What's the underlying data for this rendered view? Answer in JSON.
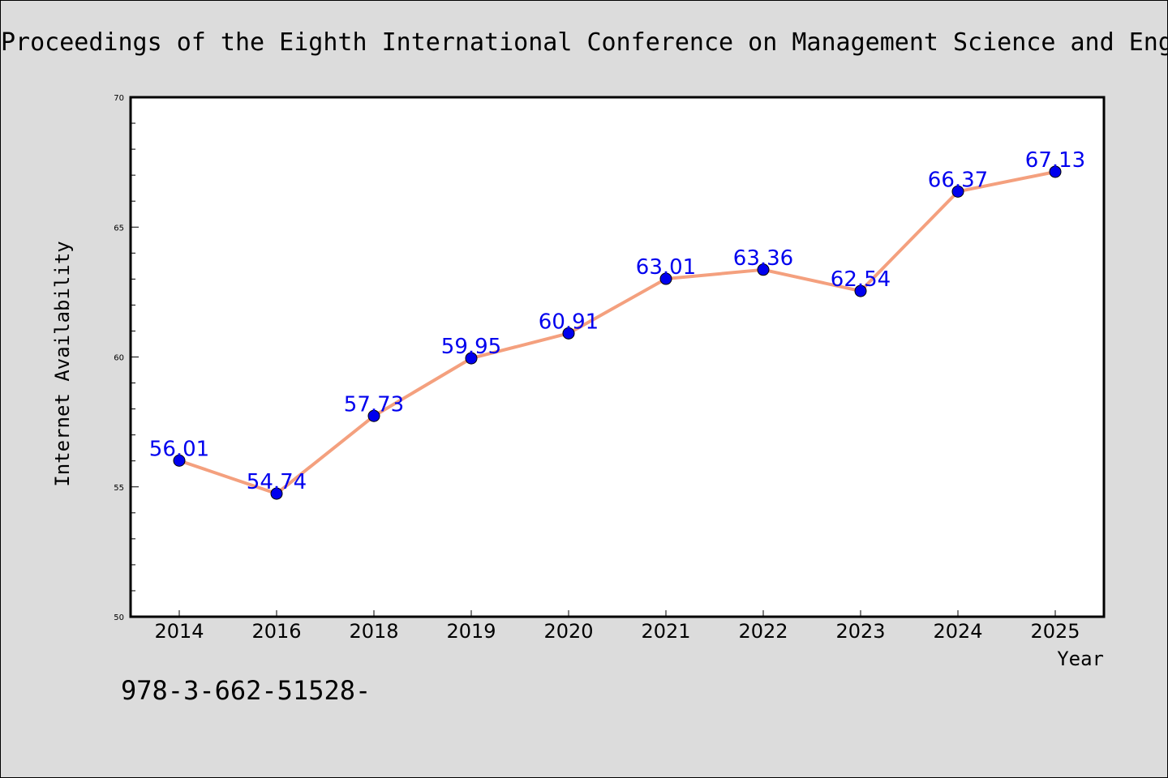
{
  "header": {
    "text": "Proceedings of the Eighth International Conference on Management Science and Engineering Management"
  },
  "footer": {
    "text": "978-3-662-51528-"
  },
  "chart_data": {
    "type": "line",
    "categories": [
      "2014",
      "2016",
      "2018",
      "2019",
      "2020",
      "2021",
      "2022",
      "2023",
      "2024",
      "2025"
    ],
    "series": [
      {
        "values": [
          56.01,
          54.74,
          57.73,
          59.95,
          60.91,
          63.01,
          63.36,
          62.54,
          66.37,
          67.13
        ],
        "data_labels": [
          "56.01",
          "54.74",
          "57.73",
          "59.95",
          "60.91",
          "63.01",
          "63.36",
          "62.54",
          "66.37",
          "67.13"
        ],
        "line_color": "#f4a07e",
        "marker_color": "#0000ee",
        "label_color": "#0000ee"
      }
    ],
    "xlabel": "Year",
    "ylabel": "Internet Availability",
    "ylim": [
      50,
      70
    ],
    "yticks": [
      "50",
      "55",
      "60",
      "65",
      "70"
    ],
    "grid": false,
    "legend": "none"
  }
}
